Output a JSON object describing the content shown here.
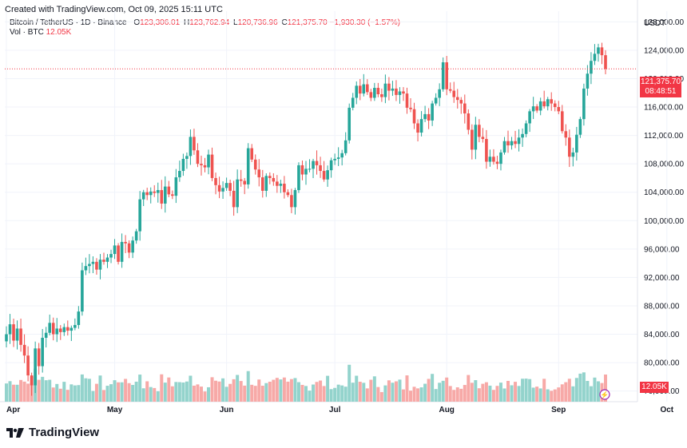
{
  "header": {
    "created": "Created with TradingView.com, Oct 09, 2025 15:11 UTC",
    "symbol": "Bitcoin / TetherUS · 1D · Binance",
    "o_label": "O",
    "o_value": "123,306.01",
    "h_label": "H",
    "h_value": "123,762.94",
    "l_label": "L",
    "l_value": "120,736.96",
    "c_label": "C",
    "c_value": "121,375.70",
    "change": "−1,930.30 (−1.57%)",
    "vol_label": "Vol · BTC",
    "vol_value": "12.05K",
    "currency": "USDT"
  },
  "price_tag": {
    "price": "121,375.70",
    "countdown": "08:48:51"
  },
  "volume_tag": "12.05K",
  "brand": "TradingView",
  "colors": {
    "up": "#26a69a",
    "down": "#ef5350",
    "up_vol": "#93d3cc",
    "down_vol": "#f7a9a7",
    "price_line": "#f23645",
    "grid": "#f0f3fa"
  },
  "chart_data": {
    "type": "candlestick",
    "symbol": "Bitcoin / TetherUS",
    "interval": "1D",
    "exchange": "Binance",
    "x_labels": [
      "Apr",
      "May",
      "Jun",
      "Jul",
      "Aug",
      "Sep",
      "Oct"
    ],
    "y_ticks": [
      76000,
      80000,
      84000,
      88000,
      92000,
      96000,
      100000,
      104000,
      108000,
      112000,
      116000,
      120000,
      124000,
      128000
    ],
    "y_tick_labels": [
      "76,000.00",
      "80,000.00",
      "84,000.00",
      "88,000.00",
      "92,000.00",
      "96,000.00",
      "100,000.00",
      "104,000.00",
      "108,000.00",
      "112,000.00",
      "116,000.00",
      "120,000.00",
      "124,000.00",
      "128,000.00"
    ],
    "ylim": [
      74500,
      129500
    ],
    "start_date": "2025-04-01",
    "last_close": 121375.7,
    "closes": [
      84000,
      85400,
      83100,
      84800,
      82500,
      81000,
      78200,
      76800,
      82000,
      79500,
      83500,
      84200,
      85600,
      84000,
      84800,
      84300,
      85000,
      84500,
      84900,
      85300,
      87200,
      93000,
      93600,
      93900,
      94200,
      93100,
      94500,
      94200,
      94800,
      95300,
      96500,
      94200,
      97000,
      96800,
      95500,
      97200,
      98500,
      103000,
      104000,
      103600,
      104100,
      103900,
      104300,
      102400,
      104800,
      103700,
      103500,
      106100,
      107000,
      108700,
      109100,
      111800,
      109900,
      108000,
      107800,
      107500,
      109300,
      106000,
      105000,
      104100,
      104600,
      105300,
      104200,
      101900,
      105800,
      105600,
      105100,
      110200,
      108600,
      107200,
      106100,
      104200,
      106300,
      106000,
      105500,
      104900,
      105200,
      104000,
      103600,
      101900,
      104300,
      107800,
      106500,
      107300,
      107300,
      108400,
      107800,
      107000,
      105800,
      107100,
      108500,
      108700,
      108900,
      109500,
      111300,
      115900,
      117300,
      119000,
      117900,
      119200,
      118100,
      117300,
      118700,
      117800,
      117400,
      119300,
      118300,
      118600,
      117700,
      118200,
      117900,
      115900,
      115700,
      113700,
      112400,
      114300,
      115000,
      114100,
      116500,
      117300,
      118500,
      122300,
      118500,
      118300,
      117400,
      117000,
      116500,
      115100,
      112800,
      110000,
      113500,
      111800,
      111500,
      108300,
      109000,
      108300,
      108000,
      109600,
      111200,
      110600,
      111200,
      110800,
      111700,
      112200,
      113700,
      115400,
      116100,
      115500,
      116800,
      116100,
      117100,
      116500,
      116000,
      115400,
      112600,
      111700,
      109000,
      109600,
      112100,
      114300,
      118600,
      120700,
      122500,
      123500,
      124400,
      123300,
      121375.7
    ],
    "volume_unit": "BTC"
  }
}
